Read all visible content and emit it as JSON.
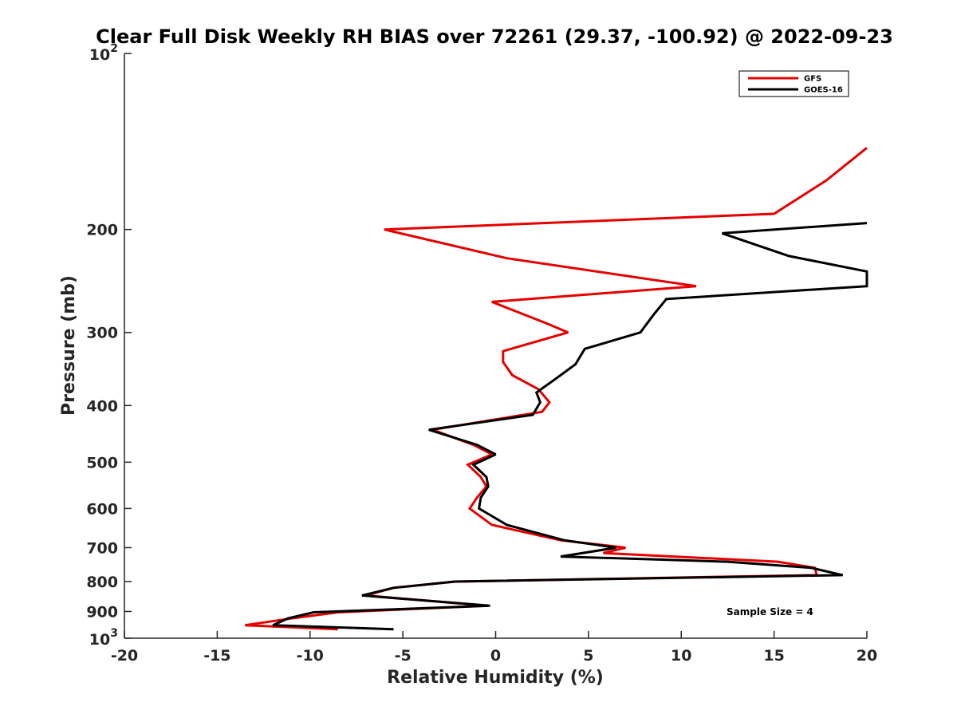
{
  "chart_data": {
    "type": "line",
    "title": "Clear Full Disk Weekly RH BIAS over 72261 (29.37, -100.92) @ 2022-09-23",
    "xlabel": "Relative Humidity (%)",
    "ylabel": "Pressure (mb)",
    "xlim": [
      -20,
      20
    ],
    "ylim": [
      100,
      1000
    ],
    "y_scale": "log",
    "y_reversed": true,
    "grid": false,
    "legend_position": "top-right",
    "x_ticks": [
      "-20",
      "-15",
      "-10",
      "-5",
      "0",
      "5",
      "10",
      "15",
      "20"
    ],
    "y_ticks": [
      {
        "value": 100,
        "base": "10",
        "exp": "2"
      },
      {
        "value": 200,
        "label": "200"
      },
      {
        "value": 300,
        "label": "300"
      },
      {
        "value": 400,
        "label": "400"
      },
      {
        "value": 500,
        "label": "500"
      },
      {
        "value": 600,
        "label": "600"
      },
      {
        "value": 700,
        "label": "700"
      },
      {
        "value": 800,
        "label": "800"
      },
      {
        "value": 900,
        "label": "900"
      },
      {
        "value": 1000,
        "base": "10",
        "exp": "3"
      }
    ],
    "annotation": "Sample Size = 4",
    "series": [
      {
        "name": "GFS",
        "color": "#e60000",
        "points": [
          [
            20.0,
            145
          ],
          [
            17.8,
            165
          ],
          [
            15.0,
            188
          ],
          [
            -6.0,
            200
          ],
          [
            0.6,
            224
          ],
          [
            10.8,
            250
          ],
          [
            -0.2,
            266
          ],
          [
            2.8,
            290
          ],
          [
            3.9,
            300
          ],
          [
            0.4,
            323
          ],
          [
            0.4,
            337
          ],
          [
            0.9,
            355
          ],
          [
            2.3,
            375
          ],
          [
            2.9,
            395
          ],
          [
            2.5,
            410
          ],
          [
            -3.4,
            440
          ],
          [
            -1.2,
            467
          ],
          [
            -0.2,
            485
          ],
          [
            -1.5,
            505
          ],
          [
            -0.8,
            530
          ],
          [
            -0.5,
            550
          ],
          [
            -1.0,
            575
          ],
          [
            -1.4,
            600
          ],
          [
            -0.2,
            640
          ],
          [
            3.5,
            680
          ],
          [
            7.0,
            700
          ],
          [
            5.8,
            715
          ],
          [
            15.2,
            740
          ],
          [
            17.2,
            758
          ],
          [
            17.3,
            780
          ],
          [
            -2.2,
            800
          ],
          [
            -5.5,
            820
          ],
          [
            -7.0,
            845
          ],
          [
            -0.5,
            880
          ],
          [
            -8.5,
            903
          ],
          [
            -11.0,
            925
          ],
          [
            -13.5,
            950
          ],
          [
            -8.5,
            965
          ]
        ]
      },
      {
        "name": "GOES-16",
        "color": "#000000",
        "points": [
          [
            20.0,
            195
          ],
          [
            12.2,
            203
          ],
          [
            15.8,
            222
          ],
          [
            20.0,
            236
          ],
          [
            20.0,
            250
          ],
          [
            9.2,
            263
          ],
          [
            8.5,
            280
          ],
          [
            7.8,
            300
          ],
          [
            4.8,
            320
          ],
          [
            4.3,
            340
          ],
          [
            3.5,
            355
          ],
          [
            2.2,
            380
          ],
          [
            2.4,
            395
          ],
          [
            2.0,
            415
          ],
          [
            -3.6,
            440
          ],
          [
            -1.0,
            467
          ],
          [
            0.0,
            485
          ],
          [
            -1.2,
            505
          ],
          [
            -0.5,
            530
          ],
          [
            -0.4,
            550
          ],
          [
            -0.8,
            575
          ],
          [
            -0.9,
            600
          ],
          [
            0.6,
            640
          ],
          [
            3.7,
            680
          ],
          [
            6.5,
            700
          ],
          [
            3.5,
            725
          ],
          [
            12.5,
            740
          ],
          [
            17.0,
            758
          ],
          [
            18.7,
            780
          ],
          [
            -2.2,
            800
          ],
          [
            -5.5,
            820
          ],
          [
            -7.2,
            845
          ],
          [
            -0.3,
            880
          ],
          [
            -9.8,
            903
          ],
          [
            -11.2,
            925
          ],
          [
            -12.0,
            950
          ],
          [
            -5.5,
            965
          ]
        ]
      }
    ]
  }
}
